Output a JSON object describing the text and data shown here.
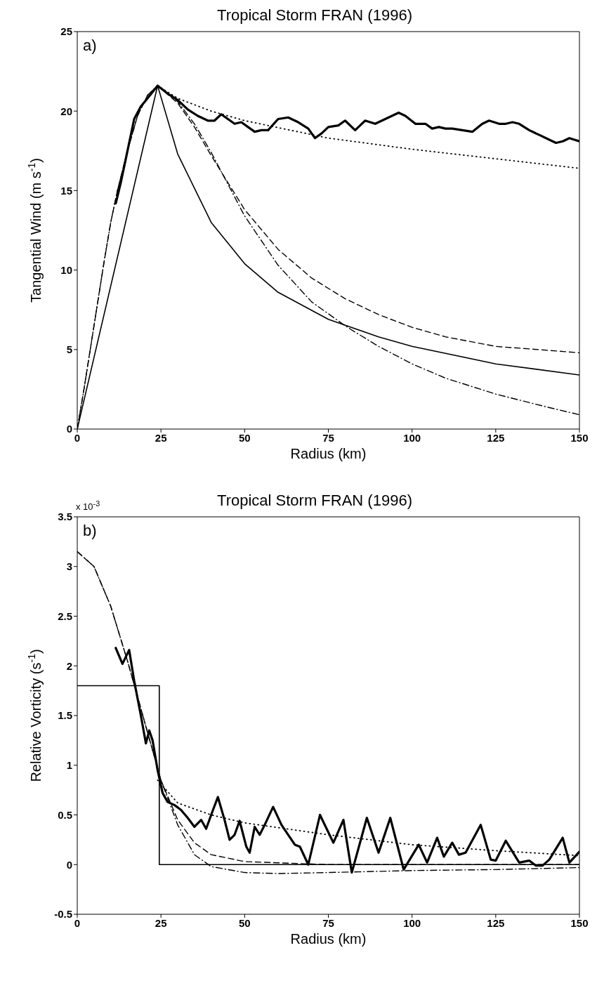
{
  "chart_data": [
    {
      "type": "line",
      "title": "Tropical Storm FRAN (1996)",
      "xlabel": "Radius (km)",
      "ylabel": "Tangential Wind (m s$^{-1}$)",
      "annotations": [
        "a)"
      ],
      "xlim": [
        0,
        150
      ],
      "xticks": [
        0,
        25,
        50,
        75,
        100,
        125,
        150
      ],
      "ylim": [
        0,
        25
      ],
      "yticks": [
        0,
        5,
        10,
        15,
        20,
        25
      ],
      "grid": false,
      "legend": false,
      "series": [
        {
          "color": "#000000",
          "line_style": "solid",
          "x": [
            11.5,
            13,
            15,
            17,
            19,
            21,
            24,
            27,
            30,
            33,
            36,
            39,
            41,
            43,
            45,
            47,
            49,
            51,
            53,
            55,
            57,
            60,
            63,
            66,
            69,
            71,
            73,
            75,
            78,
            80,
            83,
            86,
            89,
            92,
            96,
            98,
            101,
            104,
            106,
            108,
            110,
            112,
            115,
            118,
            121,
            123,
            126,
            128,
            130,
            132,
            135,
            138,
            141,
            143,
            145,
            147,
            150
          ],
          "values": [
            14.2,
            15.5,
            17.5,
            19.5,
            20.3,
            20.8,
            21.6,
            21.1,
            20.7,
            20.1,
            19.7,
            19.4,
            19.4,
            19.8,
            19.5,
            19.2,
            19.3,
            19.0,
            18.7,
            18.8,
            18.8,
            19.5,
            19.6,
            19.3,
            18.9,
            18.3,
            18.6,
            19.0,
            19.1,
            19.4,
            18.8,
            19.4,
            19.2,
            19.5,
            19.9,
            19.7,
            19.2,
            19.2,
            18.9,
            19.0,
            18.9,
            18.9,
            18.8,
            18.7,
            19.2,
            19.4,
            19.2,
            19.2,
            19.3,
            19.2,
            18.8,
            18.5,
            18.2,
            18.0,
            18.1,
            18.3,
            18.1
          ]
        },
        {
          "color": "#000000",
          "line_style": "solid",
          "x": [
            0,
            24,
            30,
            40,
            50,
            60,
            75,
            90,
            100,
            125,
            150
          ],
          "values": [
            0,
            21.6,
            17.3,
            13.0,
            10.4,
            8.6,
            6.9,
            5.8,
            5.2,
            4.1,
            3.4
          ]
        },
        {
          "color": "#000000",
          "line_style": "dashed",
          "x": [
            0,
            2,
            5,
            8,
            10,
            12,
            15,
            18,
            21,
            24,
            30,
            35,
            40,
            45,
            50,
            60,
            70,
            80,
            90,
            100,
            110,
            125,
            150
          ],
          "values": [
            0,
            2.5,
            6.5,
            10.5,
            13,
            15,
            17.5,
            19.7,
            21,
            21.6,
            20.5,
            19,
            17.2,
            15.5,
            13.8,
            11.3,
            9.5,
            8.2,
            7.2,
            6.4,
            5.8,
            5.2,
            4.8
          ]
        },
        {
          "color": "#000000",
          "line_style": "dashdot",
          "x": [
            0,
            2,
            5,
            8,
            10,
            12,
            15,
            18,
            21,
            24,
            30,
            35,
            40,
            45,
            50,
            60,
            70,
            80,
            83,
            90,
            100,
            110,
            125,
            140,
            150
          ],
          "values": [
            0,
            2.5,
            6.5,
            10.5,
            13,
            15,
            17.5,
            19.7,
            21,
            21.6,
            20.6,
            19.2,
            17.4,
            15.4,
            13.4,
            10.3,
            8.0,
            6.5,
            6.1,
            5.2,
            4.1,
            3.2,
            2.2,
            1.4,
            0.9
          ]
        },
        {
          "color": "#000000",
          "line_style": "dotted",
          "x": [
            24,
            30,
            40,
            50,
            75,
            100,
            125,
            150
          ],
          "values": [
            21.6,
            20.8,
            20.0,
            19.4,
            18.3,
            17.6,
            17.0,
            16.4
          ]
        }
      ]
    },
    {
      "type": "line",
      "title": "Tropical Storm FRAN (1996)",
      "xlabel": "Radius (km)",
      "ylabel": "Relative Vorticity (s$^{-1}$)",
      "annotations": [
        "b)",
        "x 10$^{-3}$"
      ],
      "xlim": [
        0,
        150
      ],
      "xticks": [
        0,
        25,
        50,
        75,
        100,
        125,
        150
      ],
      "ylim": [
        -0.5,
        3.5
      ],
      "yticks": [
        -0.5,
        0,
        0.5,
        1,
        1.5,
        2,
        2.5,
        3,
        3.5
      ],
      "grid": false,
      "legend": false,
      "series": [
        {
          "color": "#000000",
          "line_style": "solid",
          "x": [
            11.5,
            13.5,
            15.5,
            17,
            19,
            20.5,
            21.5,
            22.5,
            24,
            25.5,
            27,
            29,
            31,
            33,
            35,
            37,
            38.5,
            40,
            42,
            44,
            45.5,
            47,
            48.5,
            50.5,
            51.5,
            53,
            54.5,
            56,
            58.5,
            61,
            63,
            65,
            66.5,
            69,
            72.5,
            76.5,
            79.5,
            82,
            86.5,
            90,
            93.5,
            97.5,
            102,
            104.5,
            107.5,
            109.5,
            112,
            114,
            116,
            120.5,
            123.5,
            125,
            128,
            132,
            135,
            137,
            139,
            141,
            145,
            147,
            150
          ],
          "values": [
            2.18,
            2.02,
            2.16,
            1.85,
            1.5,
            1.22,
            1.35,
            1.25,
            0.95,
            0.72,
            0.63,
            0.6,
            0.55,
            0.47,
            0.38,
            0.45,
            0.36,
            0.5,
            0.68,
            0.45,
            0.25,
            0.3,
            0.44,
            0.18,
            0.12,
            0.38,
            0.3,
            0.4,
            0.58,
            0.4,
            0.3,
            0.2,
            0.18,
            0.0,
            0.5,
            0.22,
            0.45,
            -0.08,
            0.47,
            0.12,
            0.47,
            -0.05,
            0.2,
            0.02,
            0.27,
            0.08,
            0.22,
            0.1,
            0.12,
            0.4,
            0.05,
            0.04,
            0.24,
            0.02,
            0.04,
            -0.01,
            -0.01,
            0.05,
            0.27,
            0.02,
            0.13
          ]
        },
        {
          "color": "#000000",
          "line_style": "solid",
          "x": [
            0,
            24.5,
            24.5,
            150
          ],
          "values": [
            1.8,
            1.8,
            0,
            0
          ]
        },
        {
          "color": "#000000",
          "line_style": "dashed",
          "x": [
            0,
            5,
            10,
            15,
            20,
            25,
            30,
            35,
            40,
            50,
            75,
            100,
            150
          ],
          "values": [
            3.15,
            3.0,
            2.6,
            2.05,
            1.45,
            0.85,
            0.45,
            0.22,
            0.1,
            0.03,
            0.0,
            0.0,
            0.0
          ]
        },
        {
          "color": "#000000",
          "line_style": "dashdot",
          "x": [
            0,
            5,
            10,
            15,
            20,
            25,
            30,
            35,
            40,
            50,
            60,
            75,
            100,
            125,
            150
          ],
          "values": [
            3.15,
            3.0,
            2.6,
            2.05,
            1.45,
            0.85,
            0.4,
            0.1,
            -0.02,
            -0.08,
            -0.09,
            -0.08,
            -0.06,
            -0.05,
            -0.03
          ]
        },
        {
          "color": "#000000",
          "line_style": "dotted",
          "x": [
            24,
            30,
            40,
            50,
            75,
            100,
            125,
            150
          ],
          "values": [
            0.85,
            0.62,
            0.5,
            0.42,
            0.3,
            0.2,
            0.14,
            0.09
          ]
        }
      ]
    }
  ]
}
